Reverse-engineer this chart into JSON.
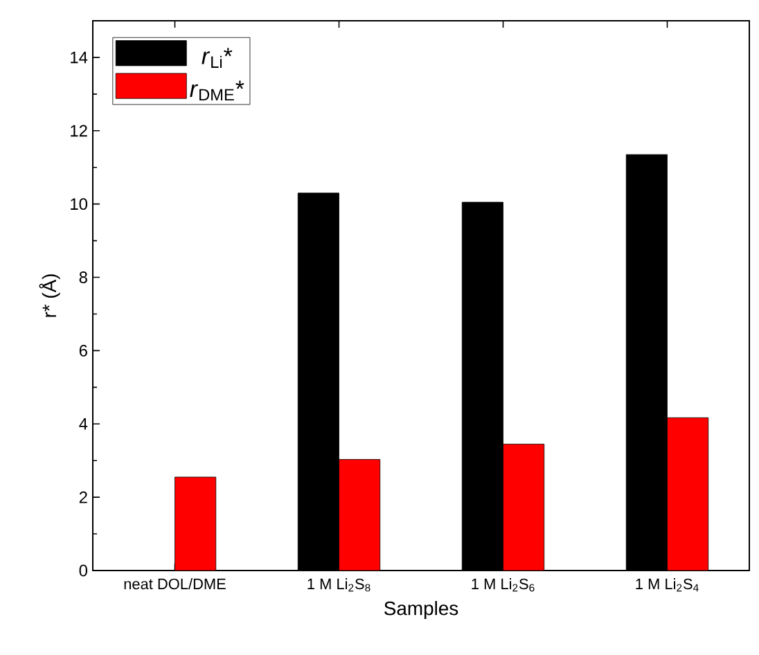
{
  "chart_data": {
    "type": "bar",
    "xlabel": "Samples",
    "ylabel": "r* (Å)",
    "categories": [
      "neat DOL/DME",
      "1 M Li$_{2}$S$_{8}$",
      "1 M Li$_{2}$S$_{6}$",
      "1 M Li$_{2}$S$_{4}$"
    ],
    "series": [
      {
        "name": "*r*$_{Li}$*",
        "color": "#000000",
        "values": [
          null,
          10.3,
          10.05,
          11.35
        ]
      },
      {
        "name": "*r*$_{DME}$*",
        "color": "#ff0000",
        "values": [
          2.55,
          3.03,
          3.45,
          4.17
        ]
      }
    ],
    "ylim": [
      0,
      15
    ],
    "yticks": [
      0,
      2,
      4,
      6,
      8,
      10,
      12,
      14
    ],
    "legend": "top left",
    "grid": false
  }
}
